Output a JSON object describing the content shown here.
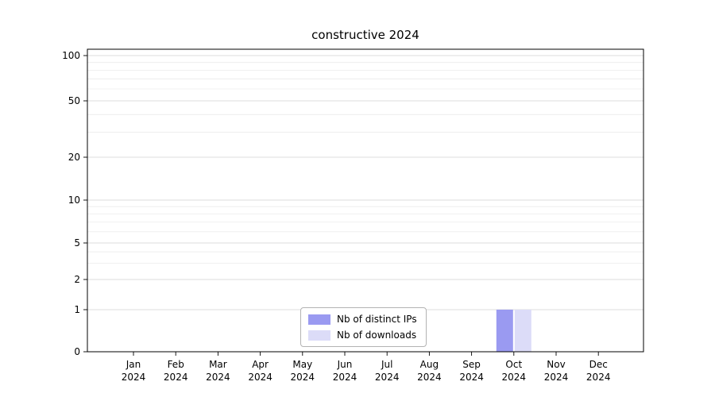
{
  "chart_data": {
    "type": "bar",
    "title": "constructive 2024",
    "categories": [
      "Jan 2024",
      "Feb 2024",
      "Mar 2024",
      "Apr 2024",
      "May 2024",
      "Jun 2024",
      "Jul 2024",
      "Aug 2024",
      "Sep 2024",
      "Oct 2024",
      "Nov 2024",
      "Dec 2024"
    ],
    "series": [
      {
        "name": "Nb of distinct IPs",
        "color": "#9a9af1",
        "values": [
          0,
          0,
          0,
          0,
          0,
          0,
          0,
          0,
          0,
          1,
          0,
          0
        ]
      },
      {
        "name": "Nb of downloads",
        "color": "#dcdcf8",
        "values": [
          0,
          0,
          0,
          0,
          0,
          0,
          0,
          0,
          0,
          1,
          0,
          0
        ]
      }
    ],
    "yticks": [
      0,
      1,
      2,
      5,
      10,
      20,
      50,
      100
    ],
    "xlabel": "",
    "ylabel": "",
    "ylim": [
      0,
      115
    ],
    "yscale": "symlog",
    "grid": "horizontal, light gray, major and minor log ticks",
    "legend_position": "bottom-center inside plot"
  }
}
